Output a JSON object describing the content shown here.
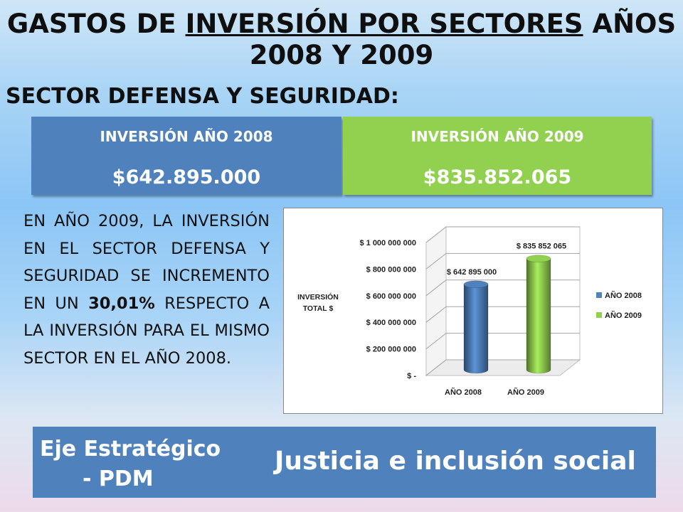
{
  "title": {
    "line1_part1": "GASTOS DE ",
    "line1_underlined": "INVERSIÓN POR SECTORES",
    "line1_part2": " AÑOS",
    "line2": "2008 Y 2009"
  },
  "subtitle": "SECTOR DEFENSA Y SEGURIDAD:",
  "boxes": [
    {
      "label": "INVERSIÓN AÑO 2008",
      "value": "$642.895.000",
      "color": "#4f81bd"
    },
    {
      "label": "INVERSIÓN AÑO 2009",
      "value": "$835.852.065",
      "color": "#92d050"
    }
  ],
  "paragraph": {
    "before": "EN AÑO 2009, LA INVERSIÓN EN EL SECTOR DEFENSA Y SEGURIDAD SE INCREMENTO EN UN ",
    "bold": "30,01%",
    "after": " RESPECTO A LA INVERSIÓN PARA EL MISMO SECTOR EN EL AÑO 2008."
  },
  "chart_data": {
    "type": "bar",
    "style": "3d-cylinder",
    "categories": [
      "AÑO 2008",
      "AÑO 2009"
    ],
    "series": [
      {
        "name": "AÑO 2008",
        "values": [
          642895000,
          null
        ],
        "color": "#4f81bd",
        "data_label": "$ 642 895 000"
      },
      {
        "name": "AÑO 2009",
        "values": [
          null,
          835852065
        ],
        "color": "#92d050",
        "data_label": "$ 835 852 065"
      }
    ],
    "ylabel": "INVERSIÓN TOTAL $",
    "ylim": [
      0,
      1000000000
    ],
    "yticks": [
      0,
      200000000,
      400000000,
      600000000,
      800000000,
      1000000000
    ],
    "ytick_labels": [
      "$ -",
      "$ 200 000 000",
      "$ 400 000 000",
      "$ 600 000 000",
      "$ 800 000 000",
      "$ 1 000 000 000"
    ],
    "grid": true,
    "legend_position": "right"
  },
  "footer": {
    "eje_line1": "Eje Estratégico",
    "eje_line2": "- PDM",
    "value": "Justicia e inclusión social"
  }
}
